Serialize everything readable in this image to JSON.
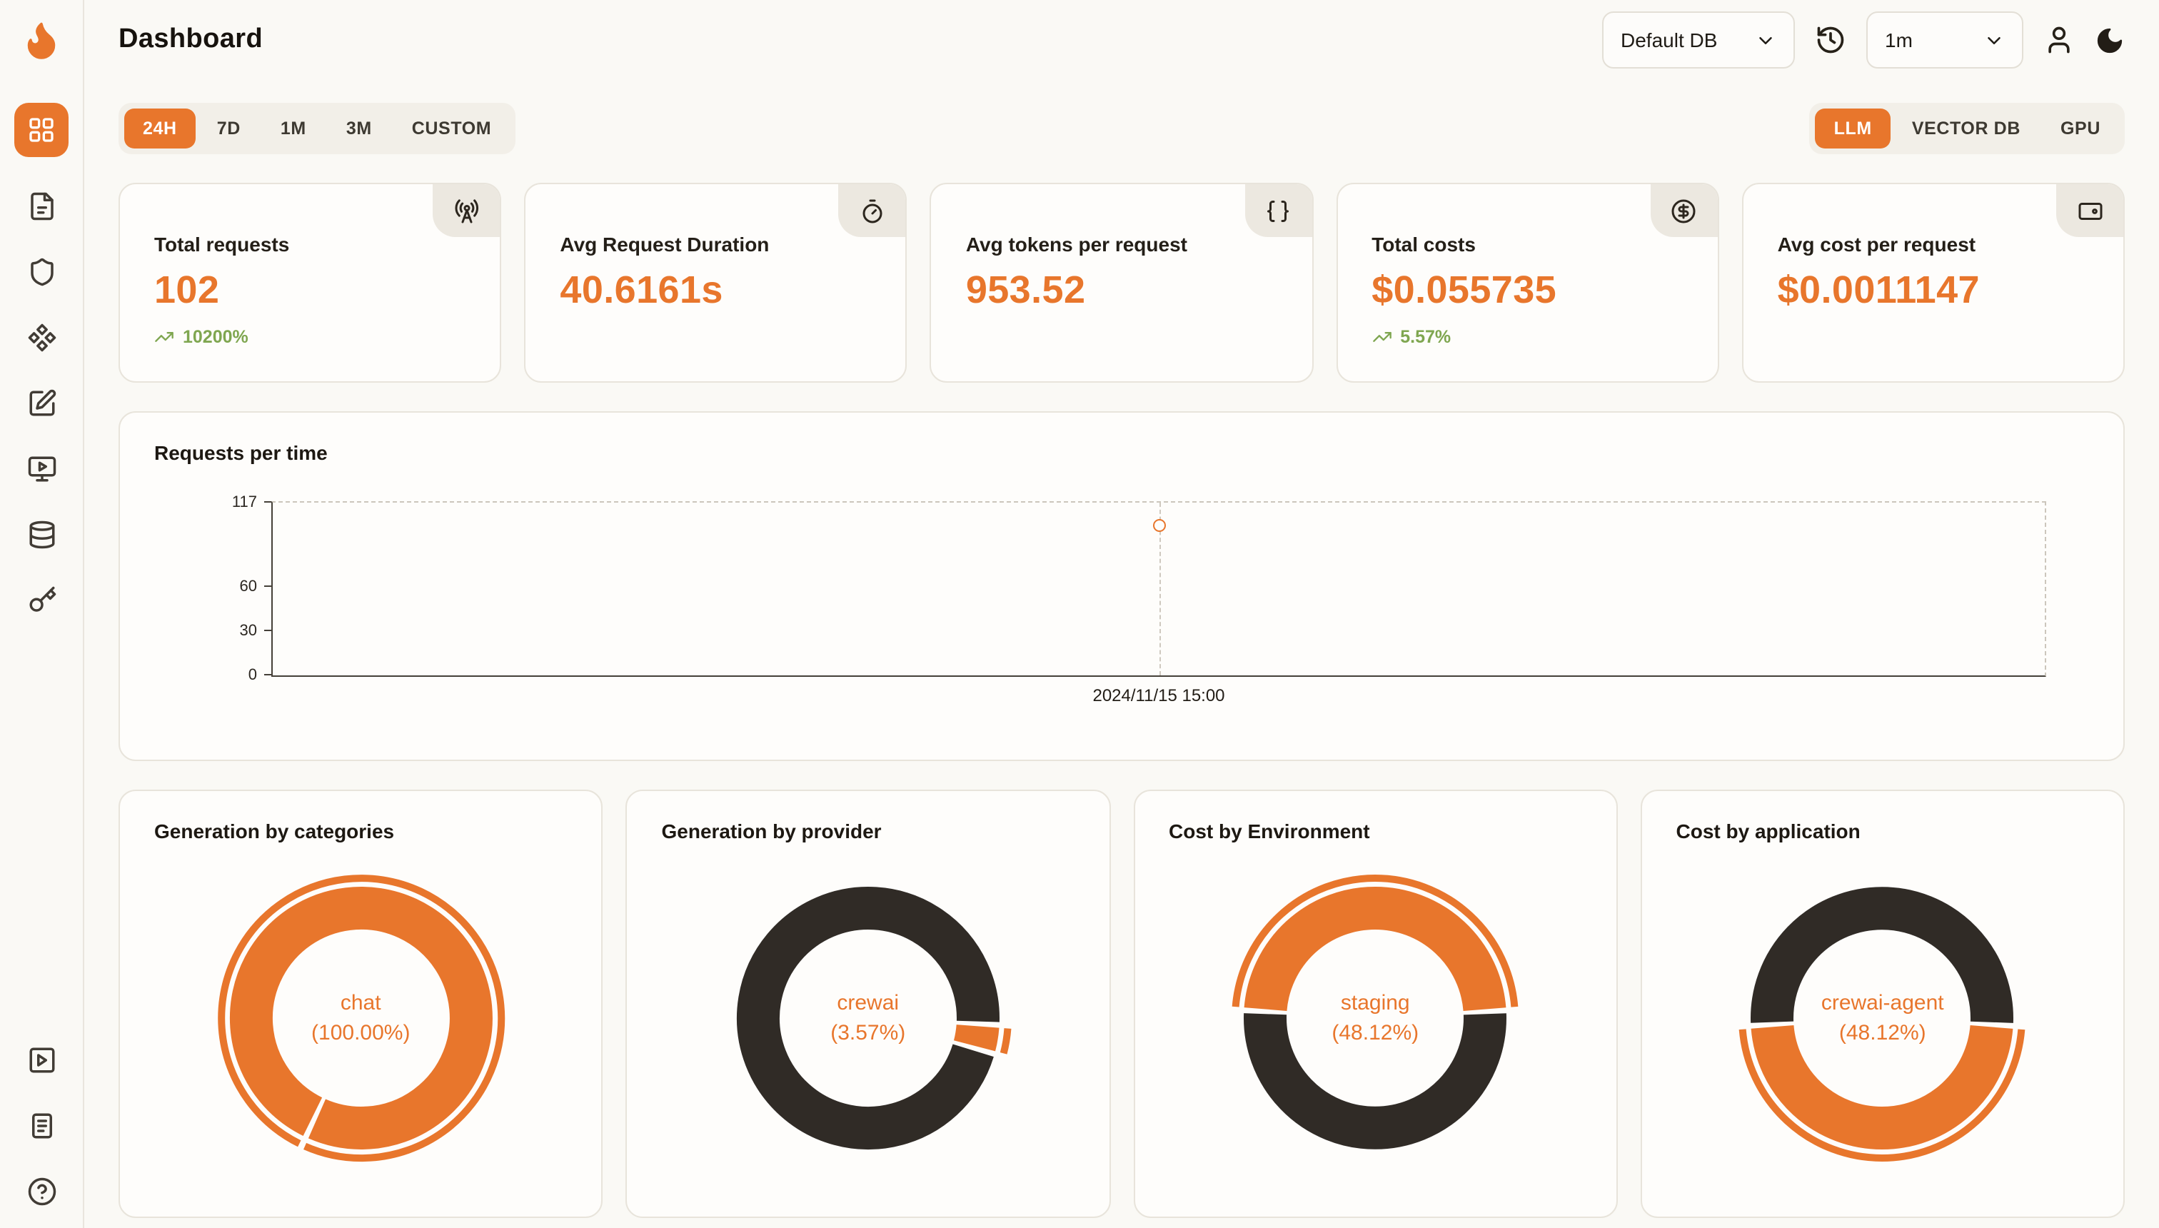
{
  "header": {
    "title": "Dashboard",
    "database_select": {
      "value": "Default DB"
    },
    "refresh_select": {
      "value": "1m"
    }
  },
  "filters": {
    "time_ranges": [
      {
        "label": "24H",
        "active": true
      },
      {
        "label": "7D",
        "active": false
      },
      {
        "label": "1M",
        "active": false
      },
      {
        "label": "3M",
        "active": false
      },
      {
        "label": "CUSTOM",
        "active": false
      }
    ],
    "sources": [
      {
        "label": "LLM",
        "active": true
      },
      {
        "label": "VECTOR DB",
        "active": false
      },
      {
        "label": "GPU",
        "active": false
      }
    ]
  },
  "stats": [
    {
      "label": "Total requests",
      "value": "102",
      "delta": "10200%",
      "icon": "radio-tower"
    },
    {
      "label": "Avg Request Duration",
      "value": "40.6161s",
      "icon": "timer"
    },
    {
      "label": "Avg tokens per request",
      "value": "953.52",
      "icon": "braces"
    },
    {
      "label": "Total costs",
      "value": "$0.055735",
      "delta": "5.57%",
      "icon": "circle-dollar"
    },
    {
      "label": "Avg cost per request",
      "value": "$0.0011147",
      "icon": "wallet"
    }
  ],
  "colors": {
    "accent": "#E8762C",
    "dark_segment": "#302B26",
    "delta_green": "#7FA650",
    "background": "#FAF9F5"
  },
  "chart_data": [
    {
      "type": "line",
      "title": "Requests per time",
      "x": [
        "2024/11/15 15:00"
      ],
      "values": [
        102
      ],
      "ylim": [
        0,
        117
      ],
      "yticks": [
        0,
        30,
        60,
        117
      ],
      "grid": "dashed-frame",
      "point_style": "open-circle"
    },
    {
      "type": "pie",
      "title": "Generation by categories",
      "center_label": "chat",
      "center_value": "(100.00%)",
      "segments": [
        {
          "label": "chat",
          "value": 100,
          "color": "#E8762C"
        }
      ],
      "rotation": 205
    },
    {
      "type": "pie",
      "title": "Generation by provider",
      "center_label": "crewai",
      "center_value": "(3.57%)",
      "segments": [
        {
          "label": "crewai",
          "value": 3.57,
          "color": "#E8762C"
        },
        {
          "value": 96.43,
          "color": "#302B26"
        }
      ],
      "rotation": 93
    },
    {
      "type": "pie",
      "title": "Cost by Environment",
      "center_label": "staging",
      "center_value": "(48.12%)",
      "segments": [
        {
          "label": "staging",
          "value": 48.12,
          "color": "#E8762C"
        },
        {
          "value": 51.88,
          "color": "#302B26"
        }
      ],
      "rotation": 273.4
    },
    {
      "type": "pie",
      "title": "Cost by application",
      "center_label": "crewai-agent",
      "center_value": "(48.12%)",
      "segments": [
        {
          "label": "crewai-agent",
          "value": 48.12,
          "color": "#E8762C"
        },
        {
          "value": 51.88,
          "color": "#302B26"
        }
      ],
      "rotation": 93.4
    }
  ],
  "sidebar": {
    "items": [
      {
        "icon": "dashboard-grid",
        "active": true
      },
      {
        "icon": "requests-file"
      },
      {
        "icon": "shield"
      },
      {
        "icon": "components"
      },
      {
        "icon": "prompt-pen"
      },
      {
        "icon": "playground-monitor"
      },
      {
        "icon": "database"
      },
      {
        "icon": "api-key"
      }
    ],
    "bottom_items": [
      {
        "icon": "play-square"
      },
      {
        "icon": "docs"
      },
      {
        "icon": "help"
      }
    ]
  }
}
